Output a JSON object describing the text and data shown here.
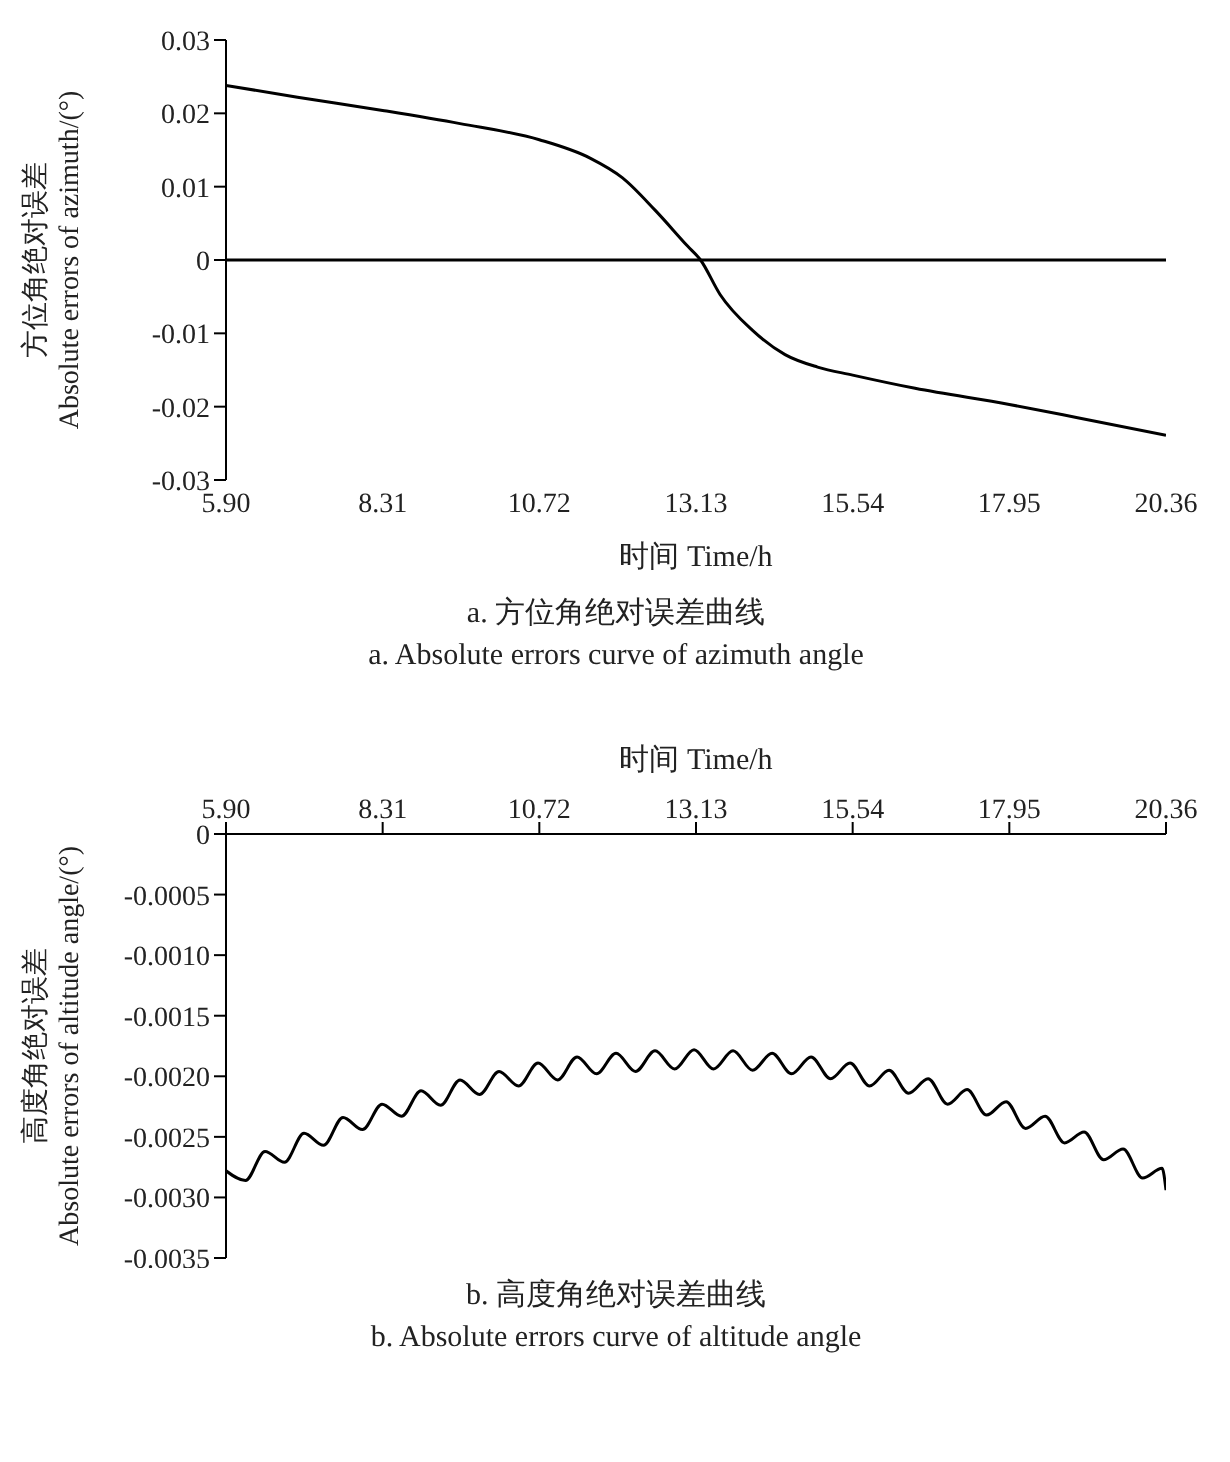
{
  "chart_data": [
    {
      "type": "line",
      "title": "a.  方位角绝对误差曲线",
      "subtitle": "a. Absolute errors curve of azimuth angle",
      "xlabel": "时间 Time/h",
      "ylabel": "方位角绝对误差\nAbsolute errors of azimuth/(°)",
      "xlim": [
        5.9,
        20.36
      ],
      "xticks": [
        {
          "value": 5.9,
          "label": "5.90"
        },
        8.31,
        10.72,
        13.13,
        15.54,
        17.95,
        20.36
      ],
      "ylim": [
        -0.03,
        0.03
      ],
      "yticks": [
        -0.03,
        -0.02,
        -0.01,
        0,
        0.01,
        0.02,
        0.03
      ],
      "ref_lines": [
        {
          "axis": "y",
          "value": 0,
          "color": "#000000"
        }
      ],
      "series": [
        {
          "color": "#000000",
          "x": [
            5.9,
            7.0,
            8.31,
            9.5,
            10.72,
            11.5,
            12.0,
            12.5,
            13.0,
            13.2,
            13.5,
            14.0,
            14.5,
            15.0,
            15.54,
            16.5,
            17.95,
            19.0,
            20.36
          ],
          "values": [
            0.0238,
            0.0222,
            0.0204,
            0.0186,
            0.0164,
            0.0139,
            0.0112,
            0.0068,
            0.0019,
            0.0,
            -0.0047,
            -0.0096,
            -0.0129,
            -0.0146,
            -0.0157,
            -0.0175,
            -0.0197,
            -0.0215,
            -0.0239
          ]
        }
      ]
    },
    {
      "type": "line",
      "title": "b.  高度角绝对误差曲线",
      "subtitle": "b. Absolute errors curve of altitude angle",
      "xlabel": "时间 Time/h",
      "ylabel": "高度角绝对误差\nAbsolute errors of altitude angle/(°)",
      "xlim": [
        5.9,
        20.36
      ],
      "xticks": [
        {
          "value": 5.9,
          "label": "5.90"
        },
        8.31,
        10.72,
        13.13,
        15.54,
        17.95,
        20.36
      ],
      "ylim": [
        -0.0035,
        0
      ],
      "yticks": [
        {
          "value": -0.0035,
          "label": "-0.0035"
        },
        {
          "value": -0.003,
          "label": "-0.0030"
        },
        {
          "value": -0.0025,
          "label": "-0.0025"
        },
        {
          "value": -0.002,
          "label": "-0.0020"
        },
        {
          "value": -0.0015,
          "label": "-0.0015"
        },
        {
          "value": -0.001,
          "label": "-0.0010"
        },
        {
          "value": -0.0005,
          "label": "-0.0005"
        },
        0
      ],
      "series": [
        {
          "color": "#000000",
          "x": [
            5.9,
            6.2,
            6.5,
            6.8,
            7.1,
            7.4,
            7.7,
            8.0,
            8.3,
            8.6,
            8.9,
            9.2,
            9.5,
            9.8,
            10.1,
            10.4,
            10.7,
            11.0,
            11.3,
            11.6,
            11.9,
            12.2,
            12.5,
            12.8,
            13.1,
            13.4,
            13.7,
            14.0,
            14.3,
            14.6,
            14.9,
            15.2,
            15.5,
            15.8,
            16.1,
            16.4,
            16.7,
            17.0,
            17.3,
            17.6,
            17.9,
            18.2,
            18.5,
            18.8,
            19.1,
            19.4,
            19.7,
            20.0,
            20.3,
            20.36
          ],
          "values": [
            -0.00278,
            -0.00286,
            -0.00262,
            -0.00271,
            -0.00247,
            -0.00257,
            -0.00234,
            -0.00244,
            -0.00223,
            -0.00233,
            -0.00212,
            -0.00224,
            -0.00203,
            -0.00215,
            -0.00196,
            -0.00208,
            -0.00189,
            -0.00203,
            -0.00184,
            -0.00198,
            -0.00181,
            -0.00196,
            -0.00179,
            -0.00194,
            -0.00178,
            -0.00194,
            -0.00179,
            -0.00195,
            -0.00181,
            -0.00198,
            -0.00184,
            -0.00202,
            -0.00189,
            -0.00208,
            -0.00195,
            -0.00214,
            -0.00202,
            -0.00223,
            -0.00211,
            -0.00232,
            -0.00221,
            -0.00243,
            -0.00233,
            -0.00255,
            -0.00246,
            -0.00269,
            -0.0026,
            -0.00284,
            -0.00276,
            -0.00294
          ]
        }
      ]
    }
  ]
}
